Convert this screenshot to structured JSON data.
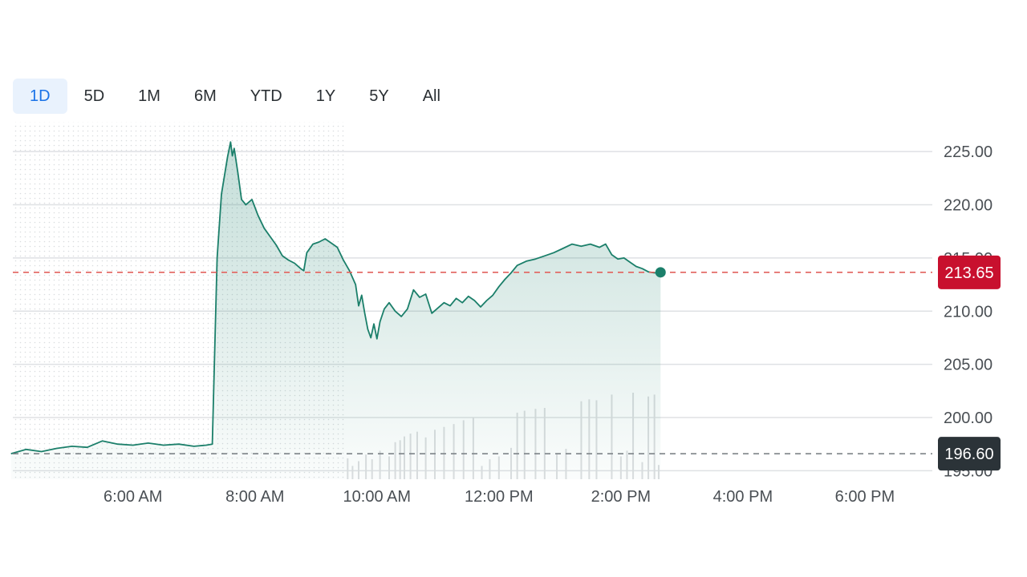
{
  "range_tabs": [
    {
      "label": "1D",
      "active": true
    },
    {
      "label": "5D",
      "active": false
    },
    {
      "label": "1M",
      "active": false
    },
    {
      "label": "6M",
      "active": false
    },
    {
      "label": "YTD",
      "active": false
    },
    {
      "label": "1Y",
      "active": false
    },
    {
      "label": "5Y",
      "active": false
    },
    {
      "label": "All",
      "active": false
    }
  ],
  "colors": {
    "line": "#1b7f6a",
    "fill": "#1b7f6a",
    "current_badge": "#c8102e",
    "prev_close_badge": "#2b3338",
    "current_dash": "#e2615c",
    "prev_dash": "#7d8388",
    "grid": "#dfe1e4",
    "active_tab": "#1a73e8"
  },
  "chart_data": {
    "type": "line",
    "title": "",
    "xlabel": "",
    "ylabel": "",
    "ylim": [
      194.2,
      227.8
    ],
    "y_ticks": [
      "225.00",
      "220.00",
      "215.00",
      "210.00",
      "205.00",
      "200.00",
      "195.00"
    ],
    "x_ticks": [
      "6:00 AM",
      "8:00 AM",
      "10:00 AM",
      "12:00 PM",
      "2:00 PM",
      "4:00 PM",
      "6:00 PM"
    ],
    "x_tick_hours": [
      6,
      8,
      10,
      12,
      14,
      16,
      18
    ],
    "x_range_hours": [
      4.03,
      19.08
    ],
    "premarket_end_hour": 9.5,
    "current_price": "213.65",
    "current_value": 213.65,
    "previous_close": "196.60",
    "previous_close_value": 196.6,
    "grid": true,
    "series": [
      {
        "points": [
          [
            4.0,
            196.6
          ],
          [
            4.25,
            197.0
          ],
          [
            4.5,
            196.8
          ],
          [
            4.75,
            197.1
          ],
          [
            5.0,
            197.3
          ],
          [
            5.25,
            197.2
          ],
          [
            5.5,
            197.8
          ],
          [
            5.75,
            197.5
          ],
          [
            6.0,
            197.4
          ],
          [
            6.25,
            197.6
          ],
          [
            6.5,
            197.4
          ],
          [
            6.75,
            197.5
          ],
          [
            7.0,
            197.3
          ],
          [
            7.2,
            197.4
          ],
          [
            7.3,
            197.5
          ],
          [
            7.38,
            215.0
          ],
          [
            7.45,
            221.0
          ],
          [
            7.55,
            224.5
          ],
          [
            7.6,
            225.9
          ],
          [
            7.63,
            224.6
          ],
          [
            7.66,
            225.3
          ],
          [
            7.72,
            223.0
          ],
          [
            7.78,
            220.5
          ],
          [
            7.85,
            220.0
          ],
          [
            7.95,
            220.5
          ],
          [
            8.05,
            219.0
          ],
          [
            8.15,
            217.8
          ],
          [
            8.25,
            217.0
          ],
          [
            8.35,
            216.2
          ],
          [
            8.45,
            215.2
          ],
          [
            8.55,
            214.8
          ],
          [
            8.65,
            214.5
          ],
          [
            8.75,
            214.0
          ],
          [
            8.8,
            213.8
          ],
          [
            8.85,
            215.5
          ],
          [
            8.95,
            216.3
          ],
          [
            9.05,
            216.5
          ],
          [
            9.15,
            216.8
          ],
          [
            9.25,
            216.4
          ],
          [
            9.35,
            216.0
          ],
          [
            9.45,
            214.8
          ],
          [
            9.55,
            213.8
          ],
          [
            9.65,
            212.5
          ],
          [
            9.7,
            210.5
          ],
          [
            9.75,
            211.5
          ],
          [
            9.8,
            209.8
          ],
          [
            9.85,
            208.3
          ],
          [
            9.9,
            207.5
          ],
          [
            9.95,
            208.8
          ],
          [
            10.0,
            207.4
          ],
          [
            10.05,
            209.0
          ],
          [
            10.12,
            210.2
          ],
          [
            10.2,
            210.8
          ],
          [
            10.3,
            210.0
          ],
          [
            10.4,
            209.5
          ],
          [
            10.5,
            210.2
          ],
          [
            10.6,
            212.0
          ],
          [
            10.7,
            211.3
          ],
          [
            10.8,
            211.6
          ],
          [
            10.9,
            209.8
          ],
          [
            11.0,
            210.3
          ],
          [
            11.1,
            210.8
          ],
          [
            11.2,
            210.5
          ],
          [
            11.3,
            211.2
          ],
          [
            11.4,
            210.8
          ],
          [
            11.5,
            211.4
          ],
          [
            11.6,
            211.0
          ],
          [
            11.7,
            210.4
          ],
          [
            11.8,
            211.0
          ],
          [
            11.9,
            211.5
          ],
          [
            12.0,
            212.3
          ],
          [
            12.1,
            213.0
          ],
          [
            12.2,
            213.6
          ],
          [
            12.3,
            214.3
          ],
          [
            12.45,
            214.7
          ],
          [
            12.6,
            214.9
          ],
          [
            12.75,
            215.2
          ],
          [
            12.9,
            215.5
          ],
          [
            13.05,
            215.9
          ],
          [
            13.2,
            216.3
          ],
          [
            13.35,
            216.1
          ],
          [
            13.5,
            216.3
          ],
          [
            13.65,
            216.0
          ],
          [
            13.75,
            216.3
          ],
          [
            13.85,
            215.3
          ],
          [
            13.95,
            214.9
          ],
          [
            14.05,
            215.0
          ],
          [
            14.15,
            214.6
          ],
          [
            14.25,
            214.2
          ],
          [
            14.35,
            214.0
          ],
          [
            14.45,
            213.7
          ],
          [
            14.55,
            213.6
          ],
          [
            14.65,
            213.65
          ]
        ]
      }
    ],
    "volume": [
      [
        9.52,
        2.2
      ],
      [
        9.6,
        1.4
      ],
      [
        9.7,
        1.9
      ],
      [
        9.82,
        2.6
      ],
      [
        9.92,
        2.1
      ],
      [
        10.05,
        3.0
      ],
      [
        10.2,
        2.4
      ],
      [
        10.3,
        3.9
      ],
      [
        10.38,
        4.1
      ],
      [
        10.45,
        4.5
      ],
      [
        10.55,
        4.8
      ],
      [
        10.66,
        5.0
      ],
      [
        10.8,
        4.4
      ],
      [
        10.95,
        5.2
      ],
      [
        11.1,
        5.5
      ],
      [
        11.26,
        5.8
      ],
      [
        11.42,
        6.2
      ],
      [
        11.58,
        6.5
      ],
      [
        11.72,
        1.4
      ],
      [
        11.85,
        2.1
      ],
      [
        12.0,
        2.4
      ],
      [
        12.2,
        3.3
      ],
      [
        12.3,
        7.0
      ],
      [
        12.42,
        7.2
      ],
      [
        12.6,
        7.4
      ],
      [
        12.75,
        7.5
      ],
      [
        12.95,
        2.6
      ],
      [
        13.1,
        3.2
      ],
      [
        13.35,
        8.2
      ],
      [
        13.48,
        8.4
      ],
      [
        13.6,
        8.3
      ],
      [
        13.85,
        8.9
      ],
      [
        14.0,
        2.4
      ],
      [
        14.1,
        3.0
      ],
      [
        14.2,
        9.1
      ],
      [
        14.35,
        1.8
      ],
      [
        14.45,
        8.7
      ],
      [
        14.55,
        8.9
      ],
      [
        14.62,
        1.5
      ]
    ]
  }
}
